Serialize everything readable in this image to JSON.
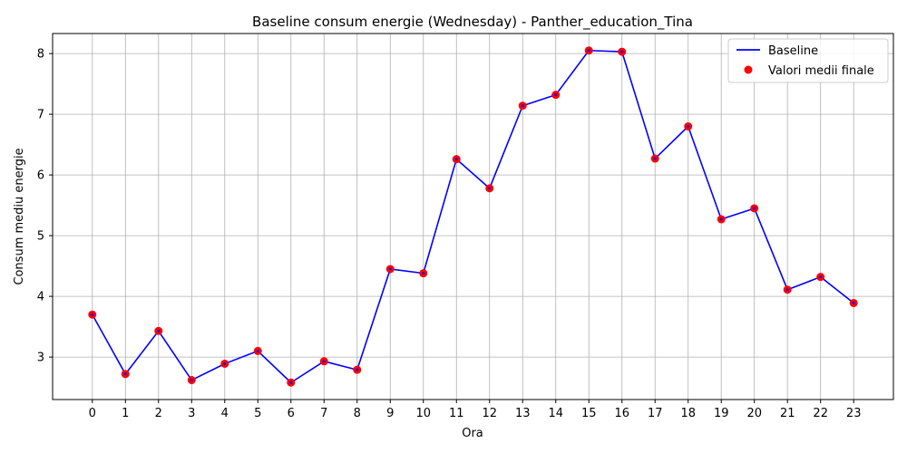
{
  "chart_data": {
    "type": "line",
    "title": "Baseline consum energie (Wednesday) - Panther_education_Tina",
    "xlabel": "Ora",
    "ylabel": "Consum mediu energie",
    "x": [
      0,
      1,
      2,
      3,
      4,
      5,
      6,
      7,
      8,
      9,
      10,
      11,
      12,
      13,
      14,
      15,
      16,
      17,
      18,
      19,
      20,
      21,
      22,
      23
    ],
    "x_ticks": [
      0,
      1,
      2,
      3,
      4,
      5,
      6,
      7,
      8,
      9,
      10,
      11,
      12,
      13,
      14,
      15,
      16,
      17,
      18,
      19,
      20,
      21,
      22,
      23
    ],
    "y_ticks": [
      3,
      4,
      5,
      6,
      7,
      8
    ],
    "xlim": [
      -1.2,
      24.2
    ],
    "ylim": [
      2.3,
      8.33
    ],
    "grid": true,
    "legend_position": "top-right",
    "series": [
      {
        "name": "Baseline",
        "kind": "line",
        "color": "#0000ff",
        "values": [
          3.7,
          2.72,
          3.43,
          2.62,
          2.89,
          3.1,
          2.58,
          2.93,
          2.79,
          4.45,
          4.38,
          6.26,
          5.78,
          7.14,
          7.32,
          8.05,
          8.03,
          6.27,
          6.8,
          5.27,
          5.45,
          4.11,
          4.32,
          3.89
        ]
      },
      {
        "name": "Valori medii finale",
        "kind": "scatter",
        "color": "#ff0000",
        "values": [
          3.7,
          2.72,
          3.43,
          2.62,
          2.89,
          3.1,
          2.58,
          2.93,
          2.79,
          4.45,
          4.38,
          6.26,
          5.78,
          7.14,
          7.32,
          8.05,
          8.03,
          6.27,
          6.8,
          5.27,
          5.45,
          4.11,
          4.32,
          3.89
        ]
      }
    ]
  }
}
